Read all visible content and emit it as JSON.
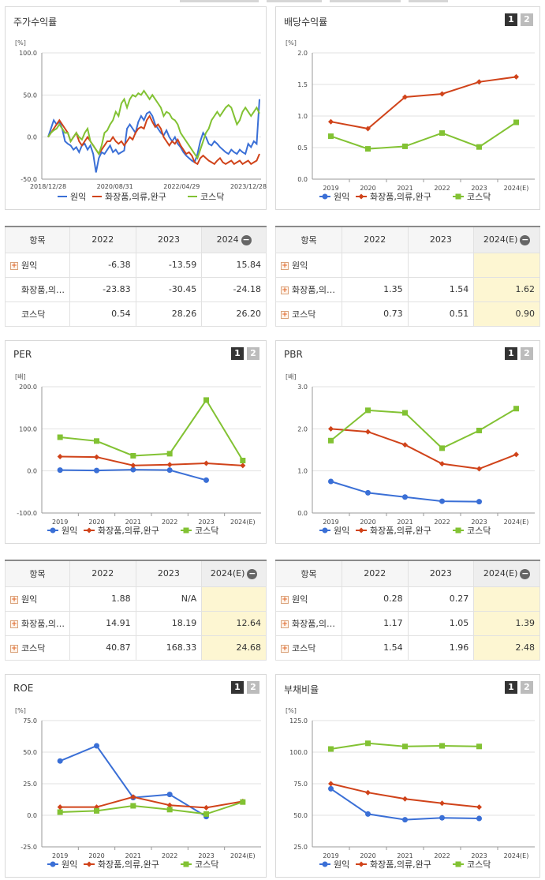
{
  "colors": {
    "wonik": "#3a6fd6",
    "cosmetic": "#d0431a",
    "kosdaq": "#82c233",
    "grid": "#e2e2e2",
    "axis": "#999999",
    "highlight": "#fdf6d2"
  },
  "legend": [
    "원익",
    "화장품,의류,완구",
    "코스닥"
  ],
  "pager": [
    "1",
    "2"
  ],
  "charts": {
    "stock": {
      "title": "주가수익률",
      "unit": "[%]",
      "yticks": [
        "100.0",
        "50.0",
        "0.0",
        "-50.0"
      ],
      "xticks": [
        "2018/12/28",
        "2020/08/31",
        "2022/04/29",
        "2023/12/28"
      ],
      "chart_data": {
        "type": "line",
        "ylim": [
          -50,
          100
        ],
        "series": [
          {
            "name": "원익",
            "values": [
              0,
              10,
              20,
              15,
              18,
              10,
              -5,
              -8,
              -10,
              -15,
              -12,
              -18,
              -10,
              -8,
              -15,
              -10,
              -20,
              -42,
              -25,
              -18,
              -20,
              -15,
              -10,
              -18,
              -15,
              -20,
              -18,
              -16,
              10,
              15,
              10,
              5,
              18,
              25,
              20,
              28,
              30,
              25,
              15,
              10,
              5,
              2,
              8,
              0,
              -5,
              0,
              -8,
              -12,
              -18,
              -22,
              -25,
              -28,
              -30,
              -20,
              -5,
              5,
              0,
              -8,
              -10,
              -5,
              -8,
              -12,
              -15,
              -18,
              -20,
              -15,
              -18,
              -20,
              -15,
              -18,
              -20,
              -8,
              -12,
              -5,
              -8,
              45
            ]
          },
          {
            "name": "화장품,의류,완구",
            "values": [
              0,
              5,
              10,
              15,
              20,
              15,
              10,
              5,
              -5,
              0,
              5,
              -5,
              -10,
              -5,
              0,
              -5,
              -10,
              -15,
              -20,
              -15,
              -10,
              -5,
              -5,
              0,
              -5,
              -8,
              -5,
              -10,
              -5,
              0,
              -3,
              5,
              10,
              12,
              10,
              20,
              25,
              18,
              12,
              15,
              10,
              0,
              -5,
              -10,
              -5,
              -8,
              -3,
              -10,
              -15,
              -20,
              -18,
              -22,
              -30,
              -32,
              -25,
              -22,
              -25,
              -28,
              -30,
              -32,
              -28,
              -25,
              -30,
              -32,
              -30,
              -28,
              -32,
              -30,
              -28,
              -32,
              -30,
              -28,
              -32,
              -30,
              -28,
              -20
            ]
          },
          {
            "name": "코스닥",
            "values": [
              0,
              5,
              8,
              10,
              15,
              10,
              5,
              5,
              -5,
              0,
              5,
              0,
              -3,
              5,
              10,
              -5,
              -10,
              -15,
              -20,
              -10,
              5,
              8,
              15,
              20,
              30,
              25,
              40,
              45,
              35,
              45,
              50,
              48,
              52,
              50,
              55,
              50,
              45,
              50,
              45,
              40,
              35,
              25,
              30,
              28,
              22,
              20,
              15,
              5,
              0,
              -5,
              -10,
              -15,
              -20,
              -25,
              -15,
              -5,
              5,
              10,
              20,
              25,
              30,
              25,
              30,
              35,
              38,
              35,
              25,
              15,
              20,
              30,
              35,
              30,
              25,
              30,
              35,
              28
            ]
          }
        ]
      }
    },
    "dividend": {
      "title": "배당수익률",
      "unit": "[%]",
      "yticks": [
        "2.0",
        "1.5",
        "1.0",
        "0.5",
        "0.0"
      ],
      "chart_data": {
        "type": "line",
        "categories": [
          "2019",
          "2020",
          "2021",
          "2022",
          "2023",
          "2024(E)"
        ],
        "ylim": [
          0,
          2
        ],
        "series": [
          {
            "name": "원익",
            "values": [
              null,
              null,
              null,
              null,
              null,
              null
            ]
          },
          {
            "name": "화장품,의류,완구",
            "values": [
              0.91,
              0.8,
              1.3,
              1.35,
              1.54,
              1.62
            ]
          },
          {
            "name": "코스닥",
            "values": [
              0.68,
              0.48,
              0.52,
              0.73,
              0.51,
              0.9
            ]
          }
        ]
      }
    },
    "per": {
      "title": "PER",
      "unit": "[배]",
      "yticks": [
        "200.0",
        "100.0",
        "0.0",
        "-100.0"
      ],
      "chart_data": {
        "type": "line",
        "categories": [
          "2019",
          "2020",
          "2021",
          "2022",
          "2023",
          "2024(E)"
        ],
        "ylim": [
          -100,
          200
        ],
        "series": [
          {
            "name": "원익",
            "values": [
              2,
              1,
              3,
              1.88,
              -22,
              null
            ]
          },
          {
            "name": "화장품,의류,완구",
            "values": [
              34,
              33,
              13,
              14.91,
              18.19,
              12.64
            ]
          },
          {
            "name": "코스닥",
            "values": [
              80,
              71,
              36,
              40.87,
              168.33,
              24.68
            ]
          }
        ]
      }
    },
    "pbr": {
      "title": "PBR",
      "unit": "[배]",
      "yticks": [
        "3.0",
        "2.0",
        "1.0",
        "0.0"
      ],
      "chart_data": {
        "type": "line",
        "categories": [
          "2019",
          "2020",
          "2021",
          "2022",
          "2023",
          "2024(E)"
        ],
        "ylim": [
          0,
          3
        ],
        "series": [
          {
            "name": "원익",
            "values": [
              0.75,
              0.48,
              0.38,
              0.28,
              0.27,
              null
            ]
          },
          {
            "name": "화장품,의류,완구",
            "values": [
              2.0,
              1.93,
              1.62,
              1.17,
              1.05,
              1.39
            ]
          },
          {
            "name": "코스닥",
            "values": [
              1.72,
              2.44,
              2.38,
              1.54,
              1.96,
              2.48
            ]
          }
        ]
      }
    },
    "roe": {
      "title": "ROE",
      "unit": "[%]",
      "yticks": [
        "75.0",
        "50.0",
        "25.0",
        "0.0",
        "-25.0"
      ],
      "chart_data": {
        "type": "line",
        "categories": [
          "2019",
          "2020",
          "2021",
          "2022",
          "2023",
          "2024(E)"
        ],
        "ylim": [
          -25,
          75
        ],
        "series": [
          {
            "name": "원익",
            "values": [
              43,
              55,
              14,
              16.5,
              -1,
              null
            ]
          },
          {
            "name": "화장품,의류,완구",
            "values": [
              6.5,
              6.5,
              14.5,
              8,
              6,
              11
            ]
          },
          {
            "name": "코스닥",
            "values": [
              2.5,
              3.5,
              7.5,
              4.5,
              1,
              10.5
            ]
          }
        ]
      }
    },
    "debt": {
      "title": "부채비율",
      "unit": "[%]",
      "yticks": [
        "125.0",
        "100.0",
        "75.0",
        "50.0",
        "25.0"
      ],
      "chart_data": {
        "type": "line",
        "categories": [
          "2019",
          "2020",
          "2021",
          "2022",
          "2023",
          "2024(E)"
        ],
        "ylim": [
          25,
          125
        ],
        "series": [
          {
            "name": "원익",
            "values": [
              71,
              51,
              46.5,
              48,
              47.5,
              null
            ]
          },
          {
            "name": "화장품,의류,완구",
            "values": [
              75,
              68,
              63,
              59.5,
              56.5,
              null
            ]
          },
          {
            "name": "코스닥",
            "values": [
              102.5,
              107,
              104.5,
              105,
              104.5,
              null
            ]
          }
        ]
      }
    }
  },
  "tables": {
    "stock": {
      "header": [
        "항목",
        "2022",
        "2023",
        "2024"
      ],
      "rows": [
        {
          "name": "원익",
          "plus": true,
          "values": [
            "-6.38",
            "-13.59",
            "15.84"
          ]
        },
        {
          "name": "화장품,의…",
          "plus": false,
          "values": [
            "-23.83",
            "-30.45",
            "-24.18"
          ]
        },
        {
          "name": "코스닥",
          "plus": false,
          "values": [
            "0.54",
            "28.26",
            "26.20"
          ]
        }
      ]
    },
    "dividend": {
      "header": [
        "항목",
        "2022",
        "2023",
        "2024(E)"
      ],
      "rows": [
        {
          "name": "원익",
          "plus": true,
          "values": [
            "",
            "",
            ""
          ]
        },
        {
          "name": "화장품,의…",
          "plus": true,
          "values": [
            "1.35",
            "1.54",
            "1.62"
          ]
        },
        {
          "name": "코스닥",
          "plus": true,
          "values": [
            "0.73",
            "0.51",
            "0.90"
          ]
        }
      ]
    },
    "per": {
      "header": [
        "항목",
        "2022",
        "2023",
        "2024(E)"
      ],
      "rows": [
        {
          "name": "원익",
          "plus": true,
          "values": [
            "1.88",
            "N/A",
            ""
          ]
        },
        {
          "name": "화장품,의…",
          "plus": true,
          "values": [
            "14.91",
            "18.19",
            "12.64"
          ]
        },
        {
          "name": "코스닥",
          "plus": true,
          "values": [
            "40.87",
            "168.33",
            "24.68"
          ]
        }
      ]
    },
    "pbr": {
      "header": [
        "항목",
        "2022",
        "2023",
        "2024(E)"
      ],
      "rows": [
        {
          "name": "원익",
          "plus": true,
          "values": [
            "0.28",
            "0.27",
            ""
          ]
        },
        {
          "name": "화장품,의…",
          "plus": true,
          "values": [
            "1.17",
            "1.05",
            "1.39"
          ]
        },
        {
          "name": "코스닥",
          "plus": true,
          "values": [
            "1.54",
            "1.96",
            "2.48"
          ]
        }
      ]
    }
  }
}
